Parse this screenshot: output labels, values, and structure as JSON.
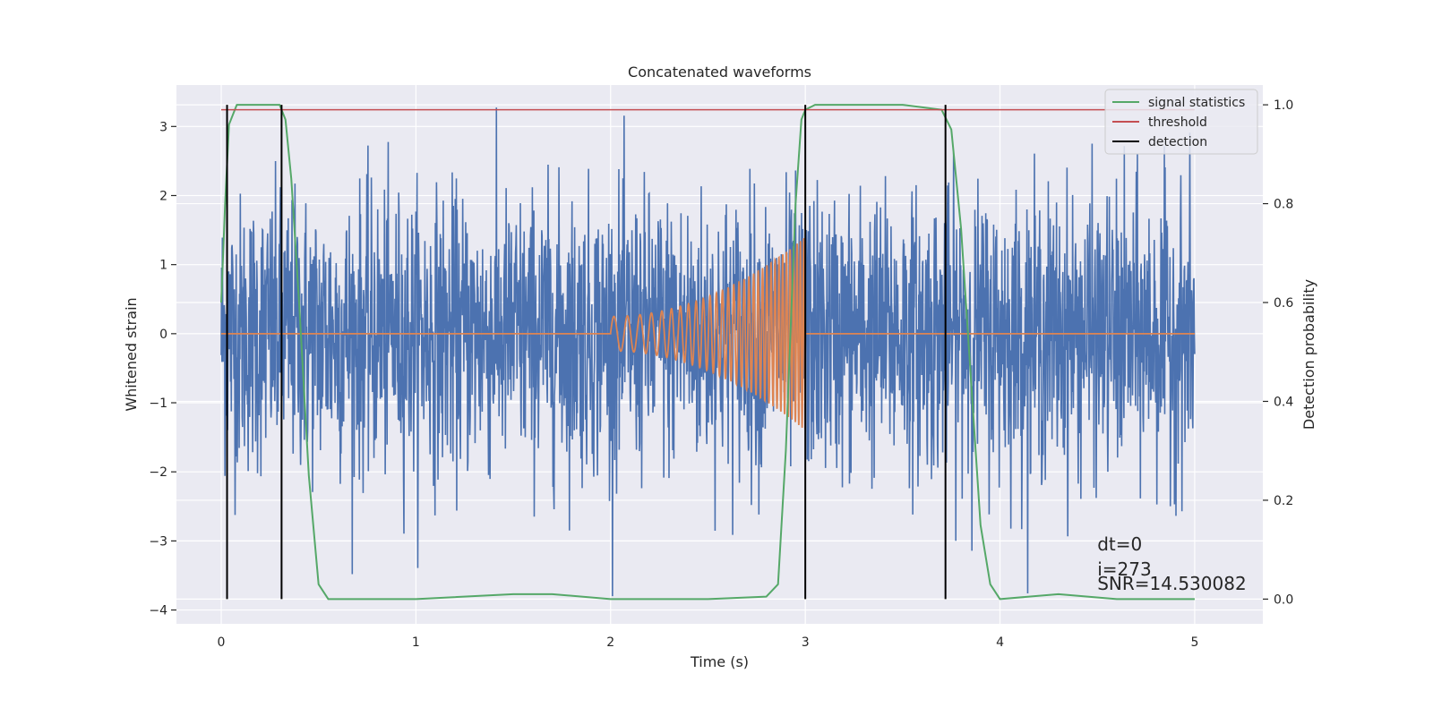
{
  "chart_data": {
    "type": "line",
    "title": "Concatenated waveforms",
    "xlabel": "Time (s)",
    "ylabel": "Whitened strain",
    "ylabel_right": "Detection probability",
    "xlim": [
      -0.23,
      5.35
    ],
    "ylim": [
      -4.2,
      3.6
    ],
    "ylim_right": [
      -0.05,
      1.04
    ],
    "x_ticks": [
      0,
      1,
      2,
      3,
      4,
      5
    ],
    "x_tick_labels": [
      "0",
      "1",
      "2",
      "3",
      "4",
      "5"
    ],
    "y_ticks": [
      -4,
      -3,
      -2,
      -1,
      0,
      1,
      2,
      3
    ],
    "y_tick_labels": [
      "−4",
      "−3",
      "−2",
      "−1",
      "0",
      "1",
      "2",
      "3"
    ],
    "y_right_ticks": [
      0.0,
      0.2,
      0.4,
      0.6,
      0.8,
      1.0
    ],
    "y_right_tick_labels": [
      "0.0",
      "0.2",
      "0.4",
      "0.6",
      "0.8",
      "1.0"
    ],
    "grid": true,
    "legend_position": "top-right",
    "background_color": "#eaeaf2",
    "colors": {
      "strain": "#4c72b0",
      "injection": "#dd8452",
      "signal_statistics": "#55a868",
      "threshold": "#c44e52",
      "detection": "#000000"
    },
    "series": [
      {
        "name": "signal statistics",
        "axis": "right",
        "x": [
          0.0,
          0.02,
          0.04,
          0.08,
          0.15,
          0.25,
          0.3,
          0.33,
          0.36,
          0.4,
          0.45,
          0.5,
          0.55,
          0.6,
          1.0,
          1.5,
          1.7,
          2.0,
          2.5,
          2.8,
          2.86,
          2.9,
          2.95,
          2.98,
          3.0,
          3.05,
          3.2,
          3.5,
          3.7,
          3.75,
          3.8,
          3.85,
          3.9,
          3.95,
          4.0,
          4.3,
          4.6,
          5.0
        ],
        "y": [
          0.6,
          0.8,
          0.96,
          1.0,
          1.0,
          1.0,
          1.0,
          0.97,
          0.85,
          0.6,
          0.25,
          0.03,
          0.0,
          0.0,
          0.0,
          0.01,
          0.01,
          0.0,
          0.0,
          0.005,
          0.03,
          0.3,
          0.8,
          0.97,
          0.99,
          1.0,
          1.0,
          1.0,
          0.99,
          0.95,
          0.75,
          0.45,
          0.15,
          0.03,
          0.0,
          0.01,
          0.0,
          0.0
        ]
      },
      {
        "name": "threshold",
        "axis": "right",
        "x": [
          0,
          5
        ],
        "y": [
          0.99,
          0.99
        ]
      },
      {
        "name": "detection",
        "axis": "right",
        "x": [
          0.03,
          0.31,
          3.0,
          3.72
        ],
        "y_range": [
          0.0,
          1.0
        ]
      }
    ],
    "strain_noise": {
      "x_range": [
        0,
        5
      ],
      "typical_amplitude": 1.0,
      "peak_max": 3.3,
      "peak_min": -3.8
    },
    "injection": {
      "x_range": [
        2.0,
        3.0
      ],
      "start_amplitude": 0.25,
      "end_amplitude": 1.4,
      "start_frequency_hz": 14,
      "end_frequency_hz": 60
    },
    "annotations": [
      "dt=0",
      "i=273",
      "SNR=14.530082"
    ]
  }
}
